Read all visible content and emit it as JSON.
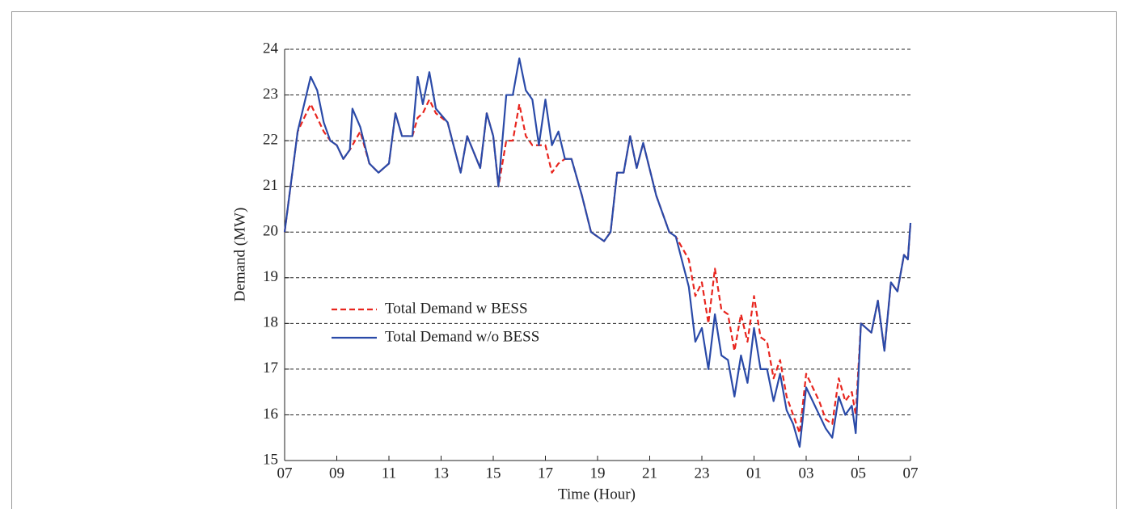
{
  "chart_data": {
    "type": "line",
    "x_label": "Time (Hour)",
    "y_label": "Demand (MW)",
    "xlim": [
      0,
      24
    ],
    "xticks": [
      {
        "value": 0,
        "label": "07"
      },
      {
        "value": 2,
        "label": "09"
      },
      {
        "value": 4,
        "label": "11"
      },
      {
        "value": 6,
        "label": "13"
      },
      {
        "value": 8,
        "label": "15"
      },
      {
        "value": 10,
        "label": "17"
      },
      {
        "value": 12,
        "label": "19"
      },
      {
        "value": 14,
        "label": "21"
      },
      {
        "value": 16,
        "label": "23"
      },
      {
        "value": 18,
        "label": "01"
      },
      {
        "value": 20,
        "label": "03"
      },
      {
        "value": 22,
        "label": "05"
      },
      {
        "value": 24,
        "label": "07"
      }
    ],
    "ylim": [
      15,
      24
    ],
    "yticks": [
      15,
      16,
      17,
      18,
      19,
      20,
      21,
      22,
      23,
      24
    ],
    "grid": true,
    "legend": "left",
    "x": [
      0,
      0.5,
      1,
      1.25,
      1.5,
      1.75,
      2,
      2.25,
      2.5,
      2.6,
      2.9,
      3.25,
      3.6,
      4,
      4.25,
      4.5,
      4.9,
      5.1,
      5.3,
      5.55,
      5.8,
      6.25,
      6.75,
      7,
      7.5,
      7.75,
      8,
      8.2,
      8.5,
      8.75,
      9,
      9.25,
      9.5,
      9.75,
      10,
      10.25,
      10.5,
      10.75,
      11,
      11.4,
      11.75,
      12.25,
      12.5,
      12.75,
      13,
      13.25,
      13.5,
      13.75,
      14.25,
      14.75,
      15,
      15.5,
      15.75,
      16,
      16.25,
      16.5,
      16.75,
      17,
      17.25,
      17.5,
      17.75,
      18,
      18.25,
      18.5,
      18.75,
      19,
      19.25,
      19.5,
      19.75,
      20,
      20.5,
      20.75,
      21,
      21.25,
      21.5,
      21.75,
      21.9,
      22.1,
      22.5,
      22.75,
      23,
      23.25,
      23.5,
      23.75,
      23.9,
      24
    ],
    "series": [
      {
        "name": "Total Demand w BESS",
        "color": "#e8251e",
        "dash": true,
        "values": [
          20,
          22.2,
          22.8,
          22.5,
          22.2,
          22,
          21.9,
          21.6,
          21.8,
          21.9,
          22.2,
          21.5,
          21.3,
          21.5,
          22.6,
          22.1,
          22.1,
          22.5,
          22.6,
          22.9,
          22.6,
          22.4,
          21.3,
          22.1,
          21.4,
          22.6,
          22.1,
          21,
          22,
          22,
          22.8,
          22.1,
          21.9,
          21.9,
          21.9,
          21.3,
          21.5,
          21.6,
          21.6,
          20.8,
          20,
          19.8,
          20,
          21.3,
          21.3,
          22.1,
          21.4,
          21.95,
          20.8,
          20,
          19.9,
          19.4,
          18.6,
          18.9,
          18,
          19.2,
          18.3,
          18.2,
          17.4,
          18.2,
          17.6,
          18.6,
          17.7,
          17.6,
          16.8,
          17.2,
          16.4,
          16,
          15.6,
          16.9,
          16.3,
          15.9,
          15.8,
          16.8,
          16.3,
          16.5,
          16,
          18,
          17.8,
          18.5,
          17.4,
          18.9,
          18.7,
          19.5,
          19.4,
          20.2
        ]
      },
      {
        "name": "Total Demand w/o BESS",
        "color": "#2a4aa8",
        "dash": false,
        "values": [
          20,
          22.2,
          23.4,
          23.1,
          22.4,
          22,
          21.9,
          21.6,
          21.8,
          22.7,
          22.3,
          21.5,
          21.3,
          21.5,
          22.6,
          22.1,
          22.1,
          23.4,
          22.8,
          23.5,
          22.7,
          22.4,
          21.3,
          22.1,
          21.4,
          22.6,
          22.1,
          21,
          23,
          23,
          23.8,
          23.1,
          22.9,
          21.9,
          22.9,
          21.9,
          22.2,
          21.6,
          21.6,
          20.8,
          20,
          19.8,
          20,
          21.3,
          21.3,
          22.1,
          21.4,
          21.95,
          20.8,
          20,
          19.9,
          18.8,
          17.6,
          17.9,
          17,
          18.2,
          17.3,
          17.2,
          16.4,
          17.3,
          16.7,
          17.9,
          17,
          17,
          16.3,
          16.9,
          16.1,
          15.8,
          15.3,
          16.6,
          16,
          15.7,
          15.5,
          16.4,
          16,
          16.2,
          15.6,
          18,
          17.8,
          18.5,
          17.4,
          18.9,
          18.7,
          19.5,
          19.4,
          20.2
        ]
      }
    ]
  }
}
